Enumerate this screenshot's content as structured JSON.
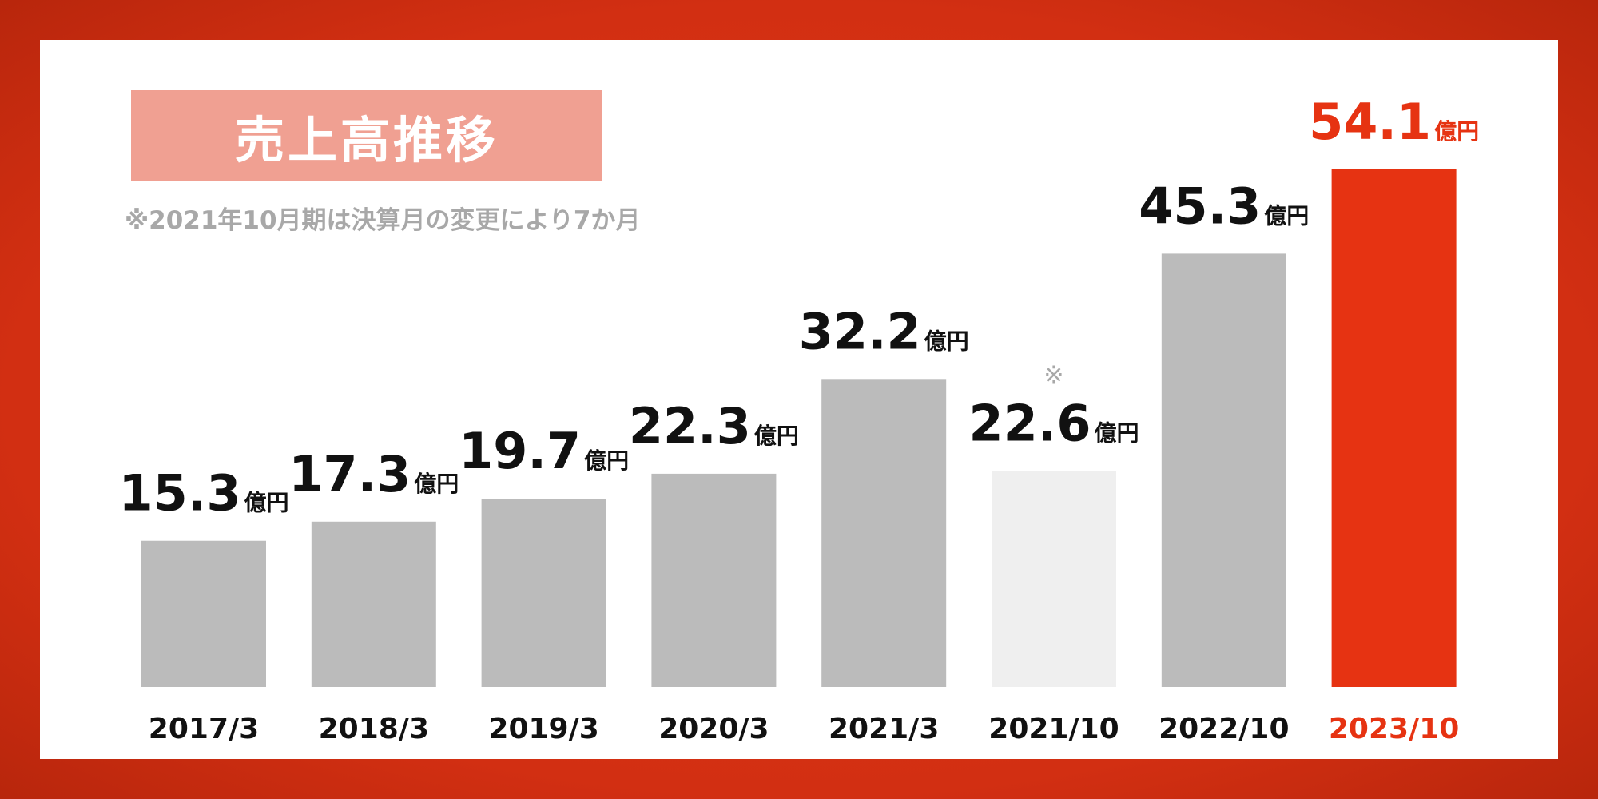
{
  "title": "売上高推移",
  "note": "※2021年10月期は決算月の変更により7か月",
  "chart_data": {
    "type": "bar",
    "title": "売上高推移",
    "unit": "億円",
    "categories": [
      "2017/3",
      "2018/3",
      "2019/3",
      "2020/3",
      "2021/3",
      "2021/10",
      "2022/10",
      "2023/10"
    ],
    "values": [
      15.3,
      17.3,
      19.7,
      22.3,
      32.2,
      22.6,
      45.3,
      54.1
    ],
    "marks": [
      "",
      "",
      "",
      "",
      "",
      "※",
      "",
      ""
    ],
    "ylim": [
      0,
      54.1
    ],
    "grid": false,
    "legend": "none"
  },
  "colors": {
    "bar_default": "#bbbbbb",
    "bar_partial": "#efefef",
    "bar_highlight": "#e63312",
    "text_default": "#111111",
    "text_highlight": "#e63312",
    "note": "#a8a8a8",
    "title_box": "#f0a092"
  }
}
